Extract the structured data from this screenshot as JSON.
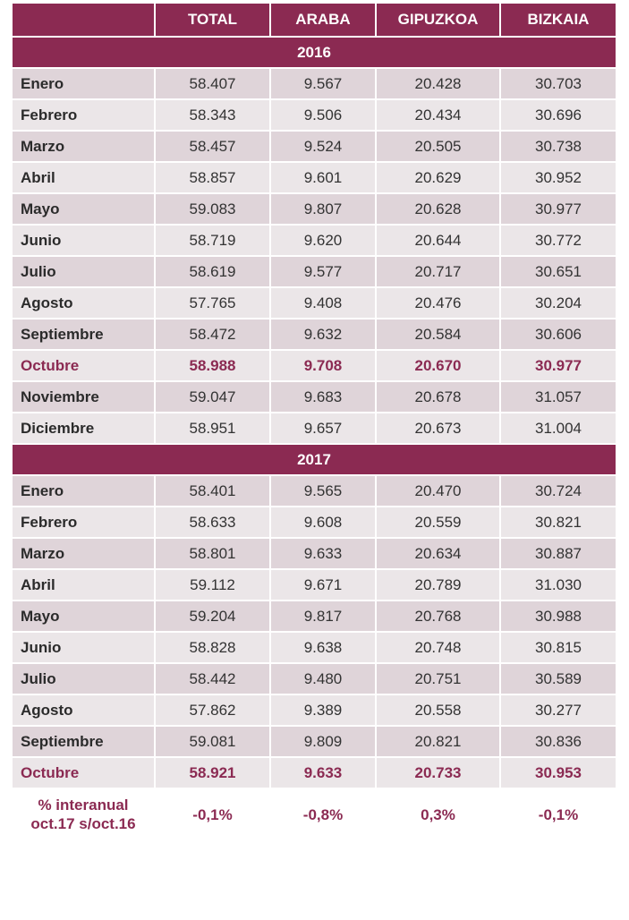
{
  "colors": {
    "accent": "#8b2a52",
    "row_odd": "#dfd4d9",
    "row_even": "#ebe6e8"
  },
  "headers": [
    "",
    "TOTAL",
    "ARABA",
    "GIPUZKOA",
    "BIZKAIA"
  ],
  "rows": [
    {
      "type": "year",
      "label": "2016"
    },
    {
      "label": "Enero",
      "values": [
        "58.407",
        "9.567",
        "20.428",
        "30.703"
      ]
    },
    {
      "label": "Febrero",
      "values": [
        "58.343",
        "9.506",
        "20.434",
        "30.696"
      ]
    },
    {
      "label": "Marzo",
      "values": [
        "58.457",
        "9.524",
        "20.505",
        "30.738"
      ]
    },
    {
      "label": "Abril",
      "values": [
        "58.857",
        "9.601",
        "20.629",
        "30.952"
      ]
    },
    {
      "label": "Mayo",
      "values": [
        "59.083",
        "9.807",
        "20.628",
        "30.977"
      ]
    },
    {
      "label": "Junio",
      "values": [
        "58.719",
        "9.620",
        "20.644",
        "30.772"
      ]
    },
    {
      "label": "Julio",
      "values": [
        "58.619",
        "9.577",
        "20.717",
        "30.651"
      ]
    },
    {
      "label": "Agosto",
      "values": [
        "57.765",
        "9.408",
        "20.476",
        "30.204"
      ]
    },
    {
      "label": "Septiembre",
      "values": [
        "58.472",
        "9.632",
        "20.584",
        "30.606"
      ]
    },
    {
      "label": "Octubre",
      "highlight": true,
      "values": [
        "58.988",
        "9.708",
        "20.670",
        "30.977"
      ]
    },
    {
      "label": "Noviembre",
      "values": [
        "59.047",
        "9.683",
        "20.678",
        "31.057"
      ]
    },
    {
      "label": "Diciembre",
      "values": [
        "58.951",
        "9.657",
        "20.673",
        "31.004"
      ]
    },
    {
      "type": "year",
      "label": "2017"
    },
    {
      "label": "Enero",
      "values": [
        "58.401",
        "9.565",
        "20.470",
        "30.724"
      ]
    },
    {
      "label": "Febrero",
      "values": [
        "58.633",
        "9.608",
        "20.559",
        "30.821"
      ]
    },
    {
      "label": "Marzo",
      "values": [
        "58.801",
        "9.633",
        "20.634",
        "30.887"
      ]
    },
    {
      "label": "Abril",
      "values": [
        "59.112",
        "9.671",
        "20.789",
        "31.030"
      ]
    },
    {
      "label": "Mayo",
      "values": [
        "59.204",
        "9.817",
        "20.768",
        "30.988"
      ]
    },
    {
      "label": "Junio",
      "values": [
        "58.828",
        "9.638",
        "20.748",
        "30.815"
      ]
    },
    {
      "label": "Julio",
      "values": [
        "58.442",
        "9.480",
        "20.751",
        "30.589"
      ]
    },
    {
      "label": "Agosto",
      "values": [
        "57.862",
        "9.389",
        "20.558",
        "30.277"
      ]
    },
    {
      "label": "Septiembre",
      "values": [
        "59.081",
        "9.809",
        "20.821",
        "30.836"
      ]
    },
    {
      "label": "Octubre",
      "highlight": true,
      "values": [
        "58.921",
        "9.633",
        "20.733",
        "30.953"
      ]
    }
  ],
  "footer": {
    "label_line1": "% interanual",
    "label_line2": "oct.17 s/oct.16",
    "values": [
      "-0,1%",
      "-0,8%",
      "0,3%",
      "-0,1%"
    ]
  }
}
